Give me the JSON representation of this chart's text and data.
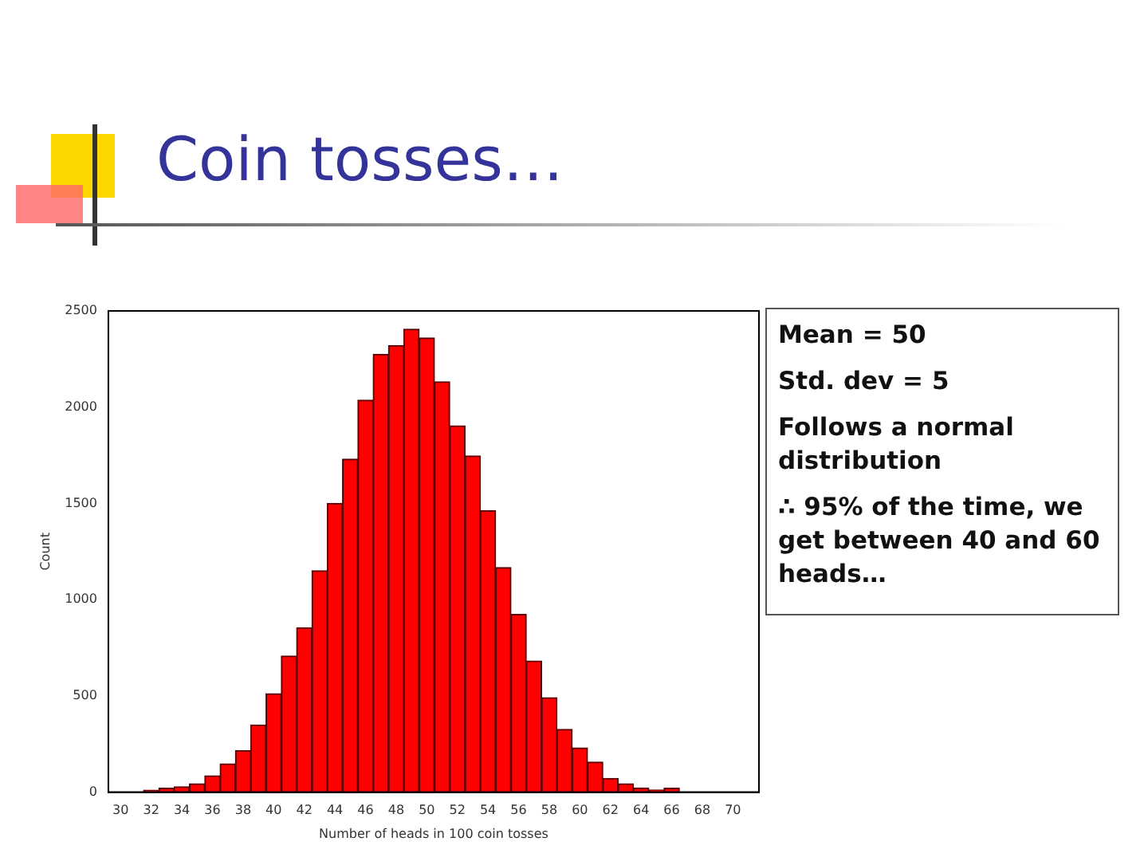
{
  "chart_data": {
    "type": "histogram",
    "title": "Coin tosses…",
    "xlabel": "Number of heads in 100 coin tosses",
    "ylabel": "Count",
    "bins": [
      31.5,
      32.5,
      33.5,
      34.5,
      35.5,
      36.5,
      37.5,
      38.5,
      39.5,
      40.5,
      41.5,
      42.5,
      43.5,
      44.5,
      45.5,
      46.5,
      47.5,
      48.5,
      49.5,
      50.5,
      51.5,
      52.5,
      53.5,
      54.5,
      55.5,
      56.5,
      57.5,
      58.5,
      59.5,
      60.5,
      61.5,
      62.5,
      63.5,
      64.5,
      65.5,
      66.5
    ],
    "values": [
      10,
      20,
      28,
      43,
      85,
      147,
      215,
      349,
      511,
      707,
      854,
      1150,
      1500,
      1730,
      2036,
      2275,
      2320,
      2405,
      2360,
      2132,
      1903,
      1747,
      1462,
      1167,
      923,
      681,
      491,
      326,
      230,
      156,
      71,
      43,
      22,
      11,
      20
    ],
    "color": "#ff0000",
    "xlim": [
      29.2,
      71.7
    ],
    "xticks": [
      30,
      32,
      34,
      36,
      38,
      40,
      42,
      44,
      46,
      48,
      50,
      52,
      54,
      56,
      58,
      60,
      62,
      64,
      66,
      68,
      70
    ],
    "ylim": [
      0,
      2500
    ],
    "yticks": [
      0,
      500,
      1000,
      1500,
      2000,
      2500
    ],
    "grid": false,
    "legend": false,
    "annotations": [
      "Mean = 50",
      "Std. dev = 5",
      "Follows a normal distribution",
      "∴ 95% of the time, we get between 40 and 60 heads…"
    ]
  }
}
